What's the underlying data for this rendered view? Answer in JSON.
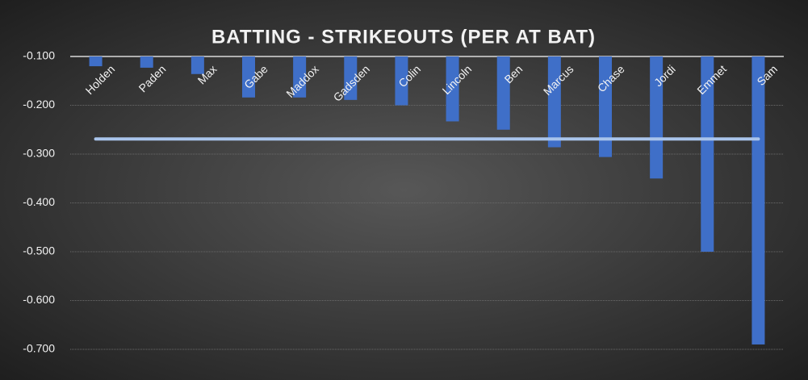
{
  "chart_data": {
    "type": "bar",
    "title": "BATTING - STRIKEOUTS (PER AT BAT)",
    "categories": [
      "Holden",
      "Paden",
      "Max",
      "Gabe",
      "Maddox",
      "Gadsden",
      "Colin",
      "Lincoln",
      "Ben",
      "Marcus",
      "Chase",
      "Jordi",
      "Emmet",
      "Sam"
    ],
    "values": [
      -0.12,
      -0.123,
      -0.136,
      -0.184,
      -0.184,
      -0.189,
      -0.2,
      -0.233,
      -0.25,
      -0.286,
      -0.306,
      -0.35,
      -0.5,
      -0.69
    ],
    "color": "#3f6fc8",
    "ylim": [
      -0.7,
      -0.1
    ],
    "yticks": [
      {
        "value": -0.1,
        "label": "-0.100"
      },
      {
        "value": -0.2,
        "label": "-0.200"
      },
      {
        "value": -0.3,
        "label": "-0.300"
      },
      {
        "value": -0.4,
        "label": "-0.400"
      },
      {
        "value": -0.5,
        "label": "-0.500"
      },
      {
        "value": -0.6,
        "label": "-0.600"
      },
      {
        "value": -0.7,
        "label": "-0.700"
      }
    ],
    "grid": true,
    "reference_line": {
      "value": -0.269,
      "color": "#a9c4eb"
    }
  }
}
